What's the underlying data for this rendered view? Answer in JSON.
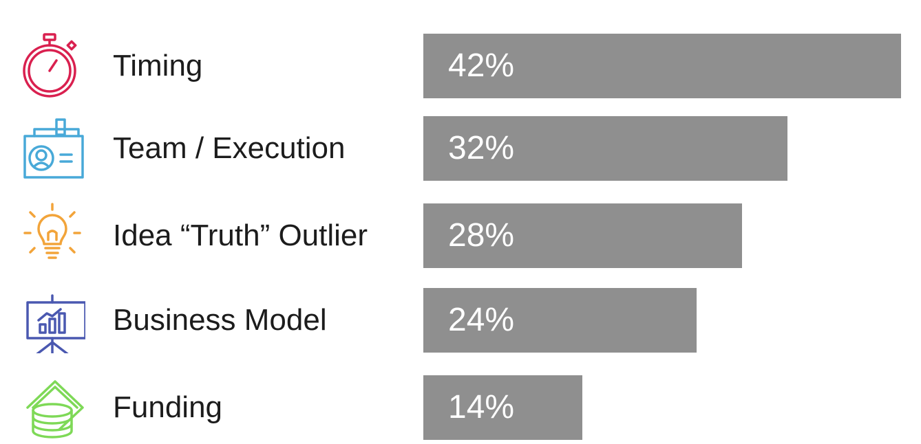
{
  "chart_data": {
    "type": "bar",
    "orientation": "horizontal",
    "categories": [
      "Timing",
      "Team / Execution",
      "Idea “Truth” Outlier",
      "Business Model",
      "Funding"
    ],
    "values": [
      42,
      32,
      28,
      24,
      14
    ],
    "value_labels": [
      "42%",
      "32%",
      "28%",
      "24%",
      "14%"
    ],
    "xlim": [
      0,
      42
    ],
    "grid": false,
    "legend": "none",
    "bar_color": "#8f8f8f",
    "icons": [
      {
        "name": "stopwatch-icon",
        "color": "#d9204f"
      },
      {
        "name": "id-badge-icon",
        "color": "#48a9d8"
      },
      {
        "name": "lightbulb-icon",
        "color": "#f2a43a"
      },
      {
        "name": "presentation-chart-icon",
        "color": "#4a58b0"
      },
      {
        "name": "money-coins-icon",
        "color": "#7ed957"
      }
    ]
  }
}
